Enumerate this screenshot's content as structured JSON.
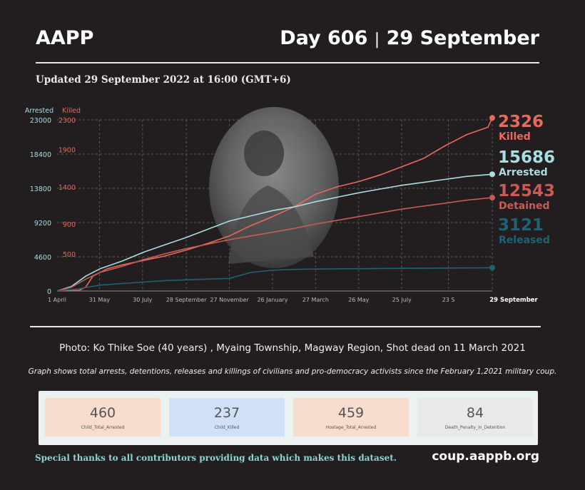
{
  "header": {
    "brand": "AAPP",
    "day": "Day 606",
    "separator": "|",
    "date": "29 September",
    "updated": "Updated 29 September 2022 at 16:00 (GMT+6)"
  },
  "colors": {
    "background": "#221e1f",
    "arrested": "#a9dde2",
    "killed": "#e8695f",
    "detained": "#c95b57",
    "released": "#1f6273",
    "grid": "#5a5658",
    "card_peach": "#f8dccd",
    "card_blue": "#cfe0f8",
    "card_grey": "#e9e9e9"
  },
  "chart_data": {
    "type": "line",
    "left_axis_label": "Arrested",
    "right_axis_label": "Killed",
    "left_ylim": [
      0,
      23000
    ],
    "left_ticks": [
      "23000",
      "18400",
      "13800",
      "9200",
      "4600",
      "0"
    ],
    "right_ylim": [
      0,
      2300
    ],
    "right_ticks": [
      "2300",
      "1900",
      "1400",
      "900",
      "500"
    ],
    "x_tick_labels": [
      "1 April",
      "31 May",
      "30 July",
      "28 September",
      "27 November",
      "26 January",
      "27 March",
      "26 May",
      "25 July",
      "23 S",
      "29 September"
    ],
    "x_days": [
      0,
      59,
      119,
      180,
      240,
      300,
      360,
      420,
      480,
      545,
      606
    ],
    "grid": true,
    "series": [
      {
        "name": "Killed",
        "axis": "right",
        "end_value": "2326",
        "end_label": "Killed",
        "points": [
          [
            0,
            0
          ],
          [
            20,
            5
          ],
          [
            31,
            10
          ],
          [
            40,
            55
          ],
          [
            50,
            200
          ],
          [
            60,
            250
          ],
          [
            70,
            300
          ],
          [
            90,
            350
          ],
          [
            120,
            410
          ],
          [
            150,
            470
          ],
          [
            180,
            550
          ],
          [
            210,
            640
          ],
          [
            240,
            740
          ],
          [
            270,
            880
          ],
          [
            300,
            1000
          ],
          [
            330,
            1130
          ],
          [
            360,
            1300
          ],
          [
            390,
            1400
          ],
          [
            420,
            1470
          ],
          [
            450,
            1560
          ],
          [
            480,
            1670
          ],
          [
            510,
            1780
          ],
          [
            540,
            1950
          ],
          [
            570,
            2100
          ],
          [
            600,
            2200
          ],
          [
            606,
            2326
          ]
        ]
      },
      {
        "name": "Arrested",
        "axis": "left",
        "end_value": "15686",
        "end_label": "Arrested",
        "points": [
          [
            0,
            0
          ],
          [
            20,
            600
          ],
          [
            40,
            2000
          ],
          [
            60,
            3000
          ],
          [
            90,
            4000
          ],
          [
            120,
            5200
          ],
          [
            150,
            6200
          ],
          [
            180,
            7200
          ],
          [
            210,
            8300
          ],
          [
            240,
            9400
          ],
          [
            270,
            10100
          ],
          [
            300,
            10800
          ],
          [
            330,
            11300
          ],
          [
            360,
            12000
          ],
          [
            390,
            12600
          ],
          [
            420,
            13200
          ],
          [
            450,
            13700
          ],
          [
            480,
            14200
          ],
          [
            510,
            14600
          ],
          [
            540,
            15000
          ],
          [
            570,
            15400
          ],
          [
            606,
            15686
          ]
        ]
      },
      {
        "name": "Detained",
        "axis": "left",
        "end_value": "12543",
        "end_label": "Detained",
        "points": [
          [
            0,
            0
          ],
          [
            20,
            500
          ],
          [
            40,
            1600
          ],
          [
            60,
            2500
          ],
          [
            90,
            3300
          ],
          [
            120,
            4200
          ],
          [
            150,
            5000
          ],
          [
            180,
            5700
          ],
          [
            210,
            6300
          ],
          [
            240,
            6900
          ],
          [
            270,
            7400
          ],
          [
            300,
            7900
          ],
          [
            330,
            8400
          ],
          [
            360,
            9000
          ],
          [
            390,
            9500
          ],
          [
            420,
            10000
          ],
          [
            450,
            10500
          ],
          [
            480,
            11000
          ],
          [
            510,
            11400
          ],
          [
            540,
            11800
          ],
          [
            570,
            12200
          ],
          [
            606,
            12543
          ]
        ]
      },
      {
        "name": "Released",
        "axis": "left",
        "end_value": "3121",
        "end_label": "Released",
        "points": [
          [
            0,
            0
          ],
          [
            30,
            300
          ],
          [
            60,
            800
          ],
          [
            90,
            1000
          ],
          [
            120,
            1200
          ],
          [
            150,
            1400
          ],
          [
            180,
            1500
          ],
          [
            210,
            1600
          ],
          [
            240,
            1700
          ],
          [
            270,
            2500
          ],
          [
            300,
            2800
          ],
          [
            330,
            2900
          ],
          [
            360,
            2950
          ],
          [
            420,
            3000
          ],
          [
            480,
            3050
          ],
          [
            540,
            3080
          ],
          [
            606,
            3121
          ]
        ]
      }
    ]
  },
  "caption": "Photo: Ko Thike Soe (40 years) , Myaing Township, Magway Region, Shot dead on 11 March 2021",
  "note": "Graph shows total arrests, detentions, releases and killings of civilians and pro-democracy activists since the February 1,2021 military coup.",
  "stats": [
    {
      "value": "460",
      "label": "Child_Total_Arrested"
    },
    {
      "value": "237",
      "label": "Child_Killed"
    },
    {
      "value": "459",
      "label": "Hostage_Total_Arrested"
    },
    {
      "value": "84",
      "label": "Death_Penalty_in_Detention"
    }
  ],
  "footer": {
    "thanks": "Special thanks to all contributors providing data which makes this dataset.",
    "site": "coup.aappb.org"
  }
}
